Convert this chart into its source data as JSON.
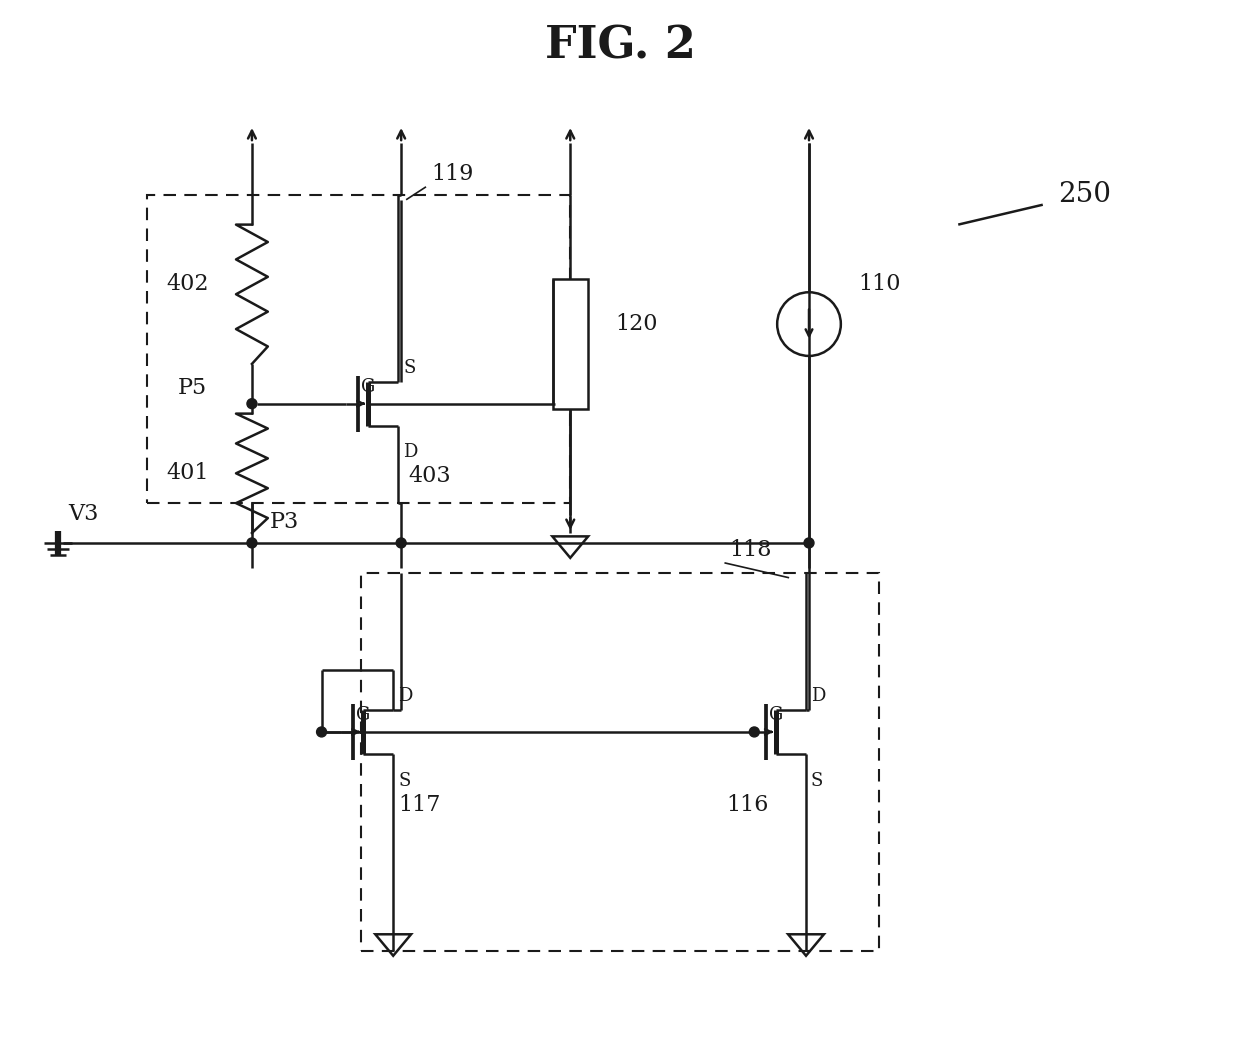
{
  "title": "FIG. 2",
  "bg_color": "#ffffff",
  "line_color": "#1a1a1a",
  "label_250": "250",
  "label_110": "110",
  "label_120": "120",
  "label_119": "119",
  "label_118": "118",
  "label_116": "116",
  "label_117": "117",
  "label_402": "402",
  "label_401": "401",
  "label_403": "403",
  "label_P5": "P5",
  "label_P3": "P3",
  "label_V3": "V3"
}
